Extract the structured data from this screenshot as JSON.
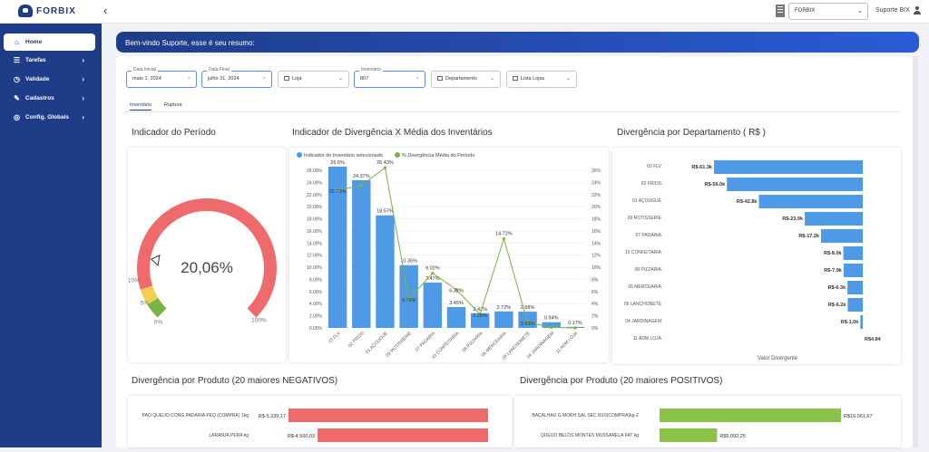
{
  "app": {
    "logo_text": "FORBIX",
    "store_selected": "FORBIX",
    "user_name": "Suporte BIX"
  },
  "sidebar": {
    "items": [
      {
        "label": "Home",
        "icon": "home-icon"
      },
      {
        "label": "Tarefas",
        "icon": "tasks-icon"
      },
      {
        "label": "Validade",
        "icon": "clock-icon"
      },
      {
        "label": "Cadastros",
        "icon": "edit-icon"
      },
      {
        "label": "Config. Globais",
        "icon": "globe-icon"
      }
    ]
  },
  "welcome": "Bem-vindo Suporte, esse é seu resumo:",
  "filters": {
    "data_inicial": {
      "label": "Data Inicial",
      "value": "maio 1, 2024"
    },
    "data_final": {
      "label": "Data Final",
      "value": "julho 31, 2024"
    },
    "loja": "Loja",
    "inventario": {
      "label": "Inventário",
      "value": "807"
    },
    "departamento": "Departamento",
    "lista_lojas": "Lista Lojas"
  },
  "tabs": [
    "Inventário",
    "Ruptura"
  ],
  "titles": {
    "periodo": "Indicador do Período",
    "divergencia": "Indicador de Divergência X Média dos Inventários",
    "departamento": "Divergência por Departamento ( R$ )",
    "negativos": "Divergência por Produto (20 maiores NEGATIVOS)",
    "positivos": "Divergência por Produto (20 maiores POSITIVOS)"
  },
  "colors": {
    "primary": "#1e3c87",
    "bar_blue": "#4f9ae6",
    "line_green": "#7cb342",
    "gauge_red": "#ef6b6b",
    "gauge_yellow": "#f3cf4e",
    "gauge_green": "#7cb342",
    "neg_red": "#ef6b6b",
    "pos_green": "#8bc34a"
  },
  "chart_data": [
    {
      "type": "gauge",
      "value_label": "20,06%",
      "value": 20.06,
      "bands": [
        {
          "label": "0%",
          "from": 0,
          "to": 5,
          "color": "#7cb342"
        },
        {
          "label": "5%",
          "from": 5,
          "to": 10,
          "color": "#f3cf4e"
        },
        {
          "label": "10%",
          "from": 10,
          "to": 100,
          "color": "#ef6b6b"
        }
      ],
      "labels": [
        "0%",
        "5%",
        "10%",
        "100%"
      ]
    },
    {
      "type": "bar",
      "categories": [
        "03 FLV",
        "02 FRIOS",
        "01 AÇOUGUE",
        "09 ROTISSERIE",
        "07 PADARIA",
        "10 CONFEITARIA",
        "08 PIZZARIA",
        "06 MERCEARIA",
        "05 LANCHONETE",
        "04 JARDINAGEM",
        "11 ADM LOJA"
      ],
      "series": [
        {
          "name": "Indicador do Inventário selecionado",
          "type": "bar",
          "values": [
            26.6,
            24.37,
            18.57,
            10.35,
            7.47,
            3.45,
            2.42,
            2.72,
            2.68,
            0.94,
            0.17
          ],
          "labels": [
            "26.6%",
            "24.37%",
            "18.57%",
            "10.35%",
            "7.47%",
            "3.45%",
            "2.42%",
            "2.72%",
            "2.68%",
            "0.94%",
            "0.17%"
          ]
        },
        {
          "name": "% Divergência Média do Período",
          "type": "line",
          "values": [
            22.71,
            23.5,
            26.43,
            4.76,
            9.02,
            6.32,
            2.26,
            14.72,
            0.93,
            0.1,
            0.0
          ],
          "labels": [
            "22.71%",
            "",
            "26.43%",
            "4.76%",
            "9.02%",
            "6.32%",
            "2.26%",
            "14.72%",
            "0.93%",
            "",
            ""
          ]
        }
      ],
      "ylim": [
        0,
        26
      ],
      "y_ticks": [
        "0.00%",
        "2.00%",
        "4.00%",
        "6.00%",
        "8.00%",
        "10.00%",
        "12.00%",
        "14.00%",
        "16.00%",
        "18.00%",
        "20.00%",
        "22.00%",
        "24.00%",
        "26.00%"
      ],
      "y2_ticks": [
        "0%",
        "2%",
        "4%",
        "6%",
        "8%",
        "10%",
        "12%",
        "14%",
        "16%",
        "18%",
        "20%",
        "22%",
        "24%",
        "26%"
      ]
    },
    {
      "type": "bar",
      "orientation": "horizontal",
      "categories": [
        "03 FLV",
        "02 FRIOS",
        "01 AÇOUGUE",
        "09 ROTISSERIE",
        "07 PADARIA",
        "10 CONFEITARIA",
        "08 PIZZARIA",
        "06 MERCEARIA",
        "05 LANCHONETE",
        "04 JARDINAGEM",
        "11 ADM LOJA"
      ],
      "values": [
        -61300,
        -56000,
        -42800,
        -23900,
        -17200,
        -8000,
        -7900,
        -6300,
        -6200,
        -1000,
        4.84
      ],
      "labels": [
        "R$-61.3k",
        "R$-56.0k",
        "R$-42.8k",
        "R$-23.9k",
        "R$-17.2k",
        "R$-8.0k",
        "R$-7.9k",
        "R$-6.3k",
        "R$-6.2k",
        "R$-1.0k",
        "R$4.84"
      ],
      "xlabel": "Valor Divergente"
    },
    {
      "type": "bar",
      "orientation": "horizontal",
      "categories": [
        "PAO QUEIJO CONG PADARIA PEQ (COMPRA) 1kg",
        "LARANJA PERA kg"
      ],
      "values": [
        -5339.17,
        -4560.03
      ],
      "labels": [
        "R$-5.339,17",
        "R$-4.560,03"
      ]
    },
    {
      "type": "bar",
      "orientation": "horizontal",
      "categories": [
        "BACALHAU G MORH SAL SEC 8/10(COMPRA)kg-Z",
        "QUEIJO BELOS MONTES MUSSARELA FAT kg"
      ],
      "values": [
        16061.67,
        5092.25
      ],
      "labels": [
        "R$16.061,67",
        "R$5.092,25"
      ]
    }
  ]
}
